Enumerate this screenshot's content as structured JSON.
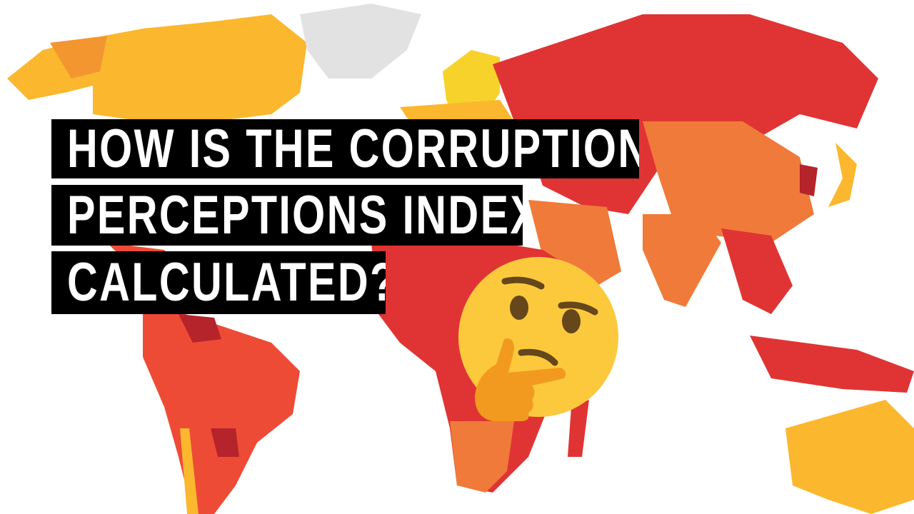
{
  "title": {
    "lines": [
      "HOW IS THE CORRUPTION",
      "PERCEPTIONS INDEX",
      "CALCULATED?"
    ]
  },
  "map": {
    "colors": {
      "very_high": "#b5232b",
      "high": "#e03434",
      "medium_high": "#ee4b36",
      "medium": "#f07a3a",
      "low": "#fbb72e",
      "very_low": "#f7d22a",
      "no_data": "#e2e2e2"
    }
  },
  "emoji": {
    "icon": "thinking-face-icon",
    "face_color": "#fcc93c",
    "hand_color": "#f29a1f",
    "feature_color": "#65471b"
  }
}
